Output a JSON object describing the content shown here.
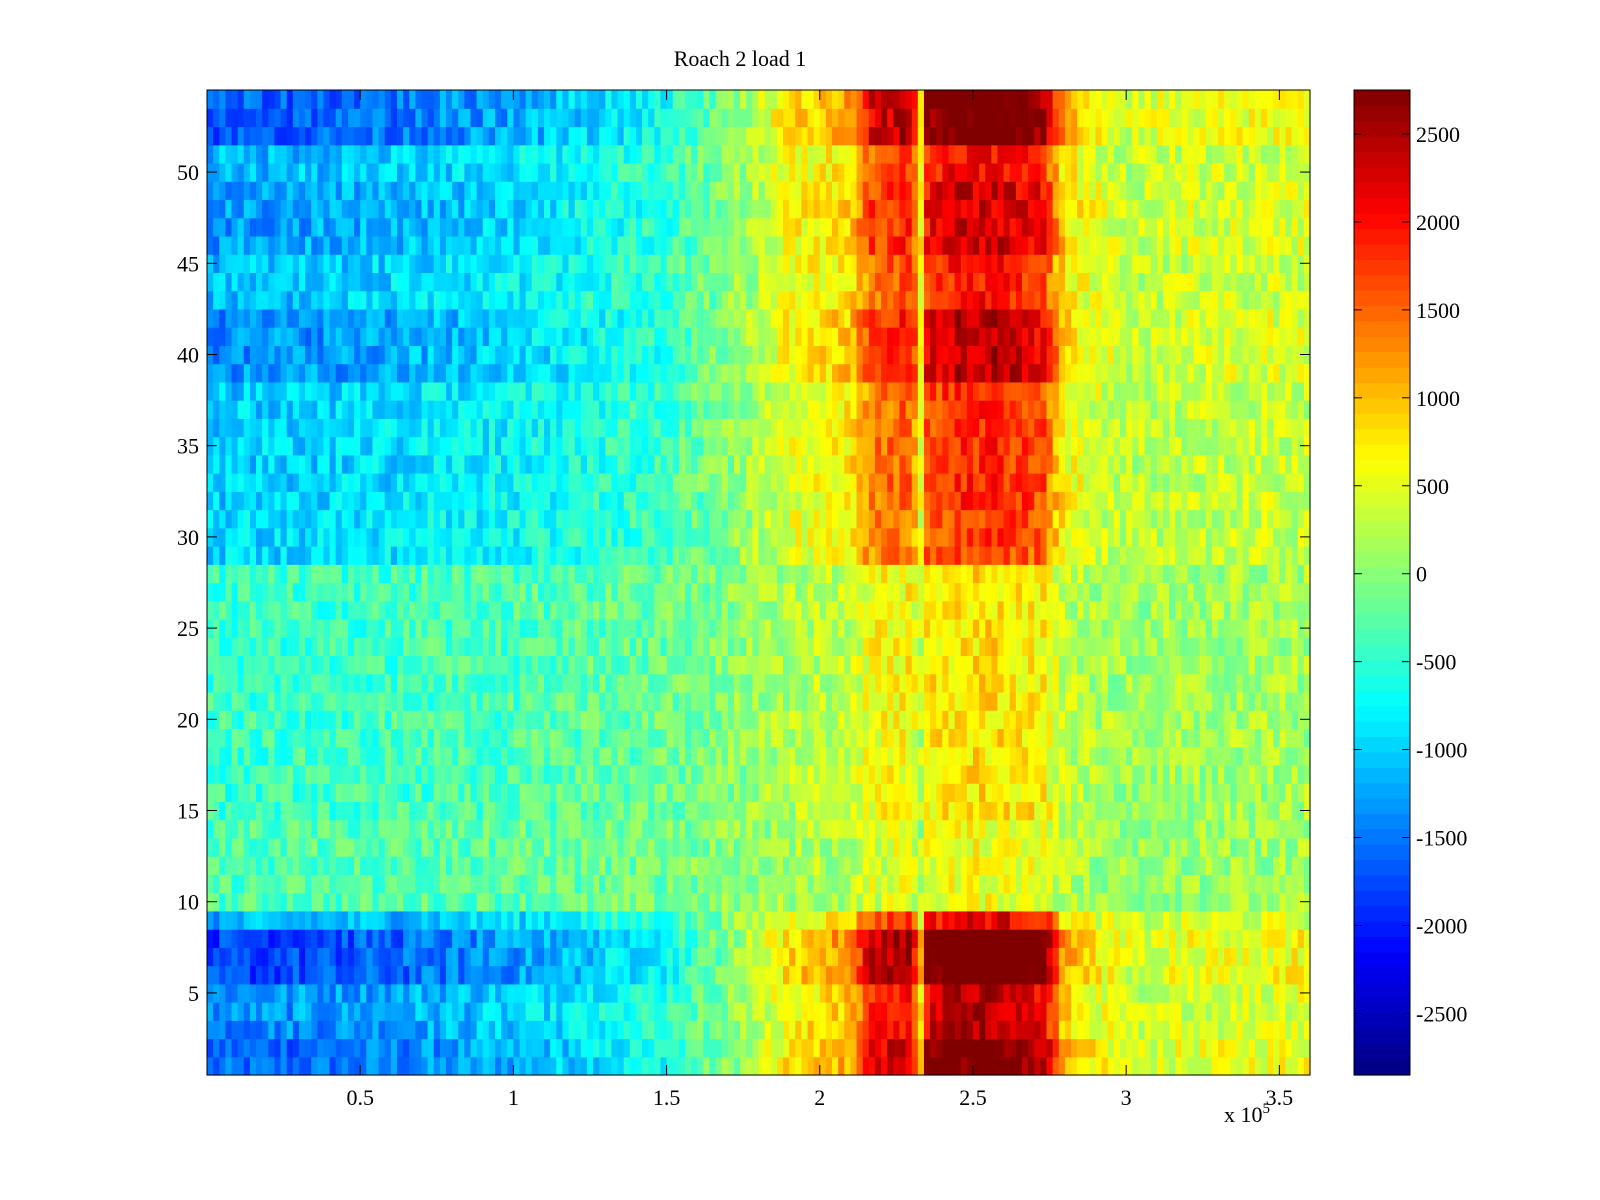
{
  "chart_data": {
    "type": "heatmap",
    "title": "Roach 2 load 1",
    "xlabel": "",
    "ylabel": "",
    "x_exponent_label": {
      "base": "x 10",
      "exponent": "5"
    },
    "xlim": [
      0,
      3.6
    ],
    "ylim": [
      0.5,
      54.5
    ],
    "x_ticks": [
      0.5,
      1,
      1.5,
      2,
      2.5,
      3,
      3.5
    ],
    "x_tick_labels": [
      "0.5",
      "1",
      "1.5",
      "2",
      "2.5",
      "3",
      "3.5"
    ],
    "y_ticks": [
      5,
      10,
      15,
      20,
      25,
      30,
      35,
      40,
      45,
      50
    ],
    "y_tick_labels": [
      "5",
      "10",
      "15",
      "20",
      "25",
      "30",
      "35",
      "40",
      "45",
      "50"
    ],
    "colormap": "jet",
    "clim": [
      -2850,
      2750
    ],
    "colorbar_ticks": [
      2500,
      2000,
      1500,
      1000,
      500,
      0,
      -500,
      -1000,
      -1500,
      -2000,
      -2500
    ],
    "colorbar_tick_labels": [
      "2500",
      "2000",
      "1500",
      "1000",
      "500",
      "0",
      "-500",
      "-1000",
      "-1500",
      "-2000",
      "-2500"
    ],
    "rows": 54,
    "column_value_profile": {
      "x": [
        0.0,
        0.5,
        1.0,
        1.5,
        1.75,
        1.9,
        2.1,
        2.17,
        2.3,
        2.33,
        2.35,
        2.45,
        2.6,
        2.73,
        2.8,
        3.0,
        3.2,
        3.6
      ],
      "value": [
        -1300,
        -1200,
        -950,
        -500,
        100,
        600,
        900,
        1700,
        1900,
        700,
        2000,
        2300,
        2300,
        2000,
        800,
        300,
        400,
        450
      ]
    },
    "row_amplitude": [
      {
        "rows": [
          1,
          2
        ],
        "amplitude": 1.25
      },
      {
        "rows": [
          3,
          3
        ],
        "amplitude": 1.1
      },
      {
        "rows": [
          4,
          5
        ],
        "amplitude": 1.05
      },
      {
        "rows": [
          6,
          8
        ],
        "amplitude": 1.4
      },
      {
        "rows": [
          9,
          9
        ],
        "amplitude": 0.95
      },
      {
        "rows": [
          10,
          14
        ],
        "amplitude": 0.25
      },
      {
        "rows": [
          15,
          28
        ],
        "amplitude": 0.35
      },
      {
        "rows": [
          29,
          31
        ],
        "amplitude": 0.75
      },
      {
        "rows": [
          32,
          38
        ],
        "amplitude": 0.8
      },
      {
        "rows": [
          39,
          42
        ],
        "amplitude": 1.05
      },
      {
        "rows": [
          43,
          45
        ],
        "amplitude": 0.85
      },
      {
        "rows": [
          46,
          49
        ],
        "amplitude": 1.0
      },
      {
        "rows": [
          50,
          51
        ],
        "amplitude": 0.9
      },
      {
        "rows": [
          52,
          54
        ],
        "amplitude": 1.3
      }
    ]
  }
}
